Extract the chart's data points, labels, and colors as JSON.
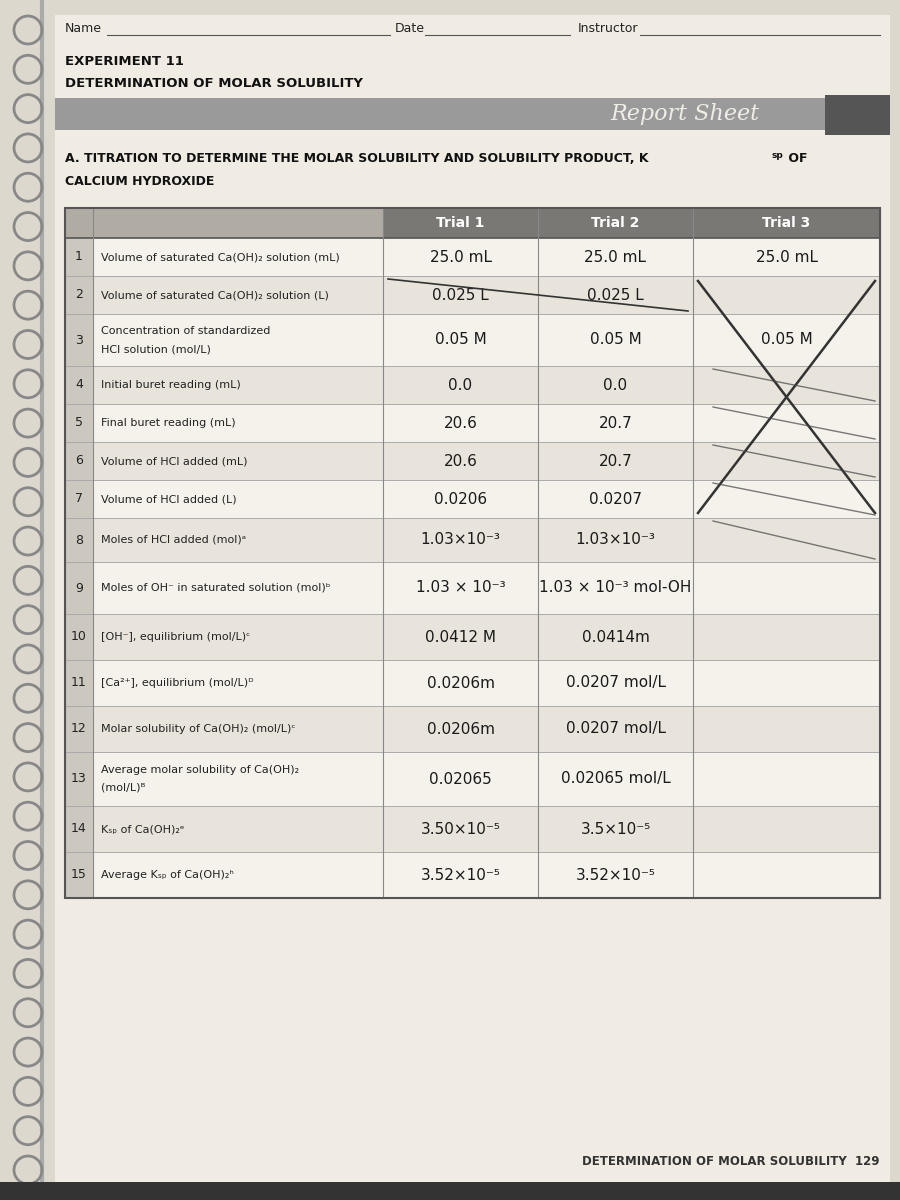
{
  "page_bg": "#ddd8ce",
  "content_bg": "#f0ece4",
  "header_line_color": "#666666",
  "name_label": "Name",
  "date_label": "Date",
  "instructor_label": "Instructor",
  "experiment_label": "EXPERIMENT 11",
  "determination_label": "DETERMINATION OF MOLAR SOLUBILITY",
  "report_sheet_label": "Report Sheet",
  "section_title": "A. TITRATION TO DETERMINE THE MOLAR SOLUBILITY AND SOLUBILITY PRODUCT, K",
  "section_title2": "CALCIUM HYDROXIDE",
  "col_headers": [
    "Trial 1",
    "Trial 2",
    "Trial 3"
  ],
  "footer_text": "DETERMINATION OF MOLAR SOLUBILITY  129",
  "rows": [
    {
      "num": "1",
      "label": "Volume of saturated Ca(OH)₂ solution (mL)",
      "t1": "25.0 mL",
      "t2": "25.0 mL",
      "t3": "25.0 mL",
      "tall": false
    },
    {
      "num": "2",
      "label": "Volume of saturated Ca(OH)₂ solution (L)",
      "t1": "0.025 L",
      "t2": "0.025 L",
      "t3": "",
      "tall": false
    },
    {
      "num": "3",
      "label": "Concentration of standardized\nHCl solution (mol/L)",
      "t1": "0.05 M",
      "t2": "0.05 M",
      "t3": "0.05 M",
      "tall": true
    },
    {
      "num": "4",
      "label": "Initial buret reading (mL)",
      "t1": "0.0",
      "t2": "0.0",
      "t3": "",
      "tall": false
    },
    {
      "num": "5",
      "label": "Final buret reading (mL)",
      "t1": "20.6",
      "t2": "20.7",
      "t3": "",
      "tall": false
    },
    {
      "num": "6",
      "label": "Volume of HCl added (mL)",
      "t1": "20.6",
      "t2": "20.7",
      "t3": "",
      "tall": false
    },
    {
      "num": "7",
      "label": "Volume of HCl added (L)",
      "t1": "0.0206",
      "t2": "0.0207",
      "t3": "",
      "tall": false
    },
    {
      "num": "8",
      "label": "Moles of HCl added (mol)ᵃ",
      "t1": "1.03×10⁻³",
      "t2": "1.03×10⁻³",
      "t3": "",
      "tall": false
    },
    {
      "num": "9",
      "label": "Moles of OH⁻ in saturated solution (mol)ᵇ",
      "t1": "1.03 × 10⁻³",
      "t2": "1.03 × 10⁻³ mol-OH",
      "t3": "",
      "tall": false
    },
    {
      "num": "10",
      "label": "[OH⁻], equilibrium (mol/L)ᶜ",
      "t1": "0.0412 M",
      "t2": "0.0414m",
      "t3": "",
      "tall": false
    },
    {
      "num": "11",
      "label": "[Ca²⁺], equilibrium (mol/L)ᴰ",
      "t1": "0.0206m",
      "t2": "0.0207 mol/L",
      "t3": "",
      "tall": false
    },
    {
      "num": "12",
      "label": "Molar solubility of Ca(OH)₂ (mol/L)ᶜ",
      "t1": "0.0206m",
      "t2": "0.0207 mol/L",
      "t3": "",
      "tall": false
    },
    {
      "num": "13",
      "label": "Average molar solubility of Ca(OH)₂\n(mol/L)ᴮ",
      "t1": "0.02065",
      "t2": "0.02065 mol/L",
      "t3": "",
      "tall": true
    },
    {
      "num": "14",
      "label": "Kₛₚ of Ca(OH)₂ᵉ",
      "t1": "3.50×10⁻⁵",
      "t2": "3.5×10⁻⁵",
      "t3": "",
      "tall": false
    },
    {
      "num": "15",
      "label": "Average Kₛₚ of Ca(OH)₂ʰ",
      "t1": "3.52×10⁻⁵",
      "t2": "3.52×10⁻⁵",
      "t3": "",
      "tall": false
    }
  ]
}
